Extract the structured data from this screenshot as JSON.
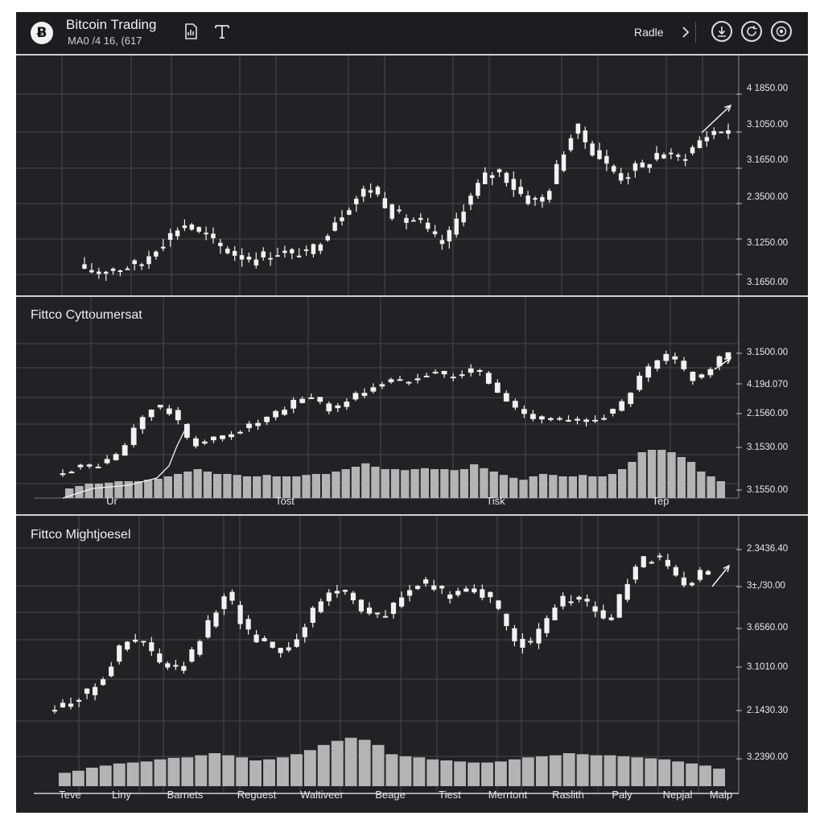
{
  "header": {
    "title": "Bitcoin Trading",
    "subtitle": "MA0 /4 16, (617",
    "logo_glyph": "Ƀ",
    "trade_label": "Radle",
    "icons": [
      "chart-doc-icon",
      "text-tool-icon",
      "chevron-right-icon",
      "download-icon",
      "refresh-icon",
      "target-icon"
    ]
  },
  "colors": {
    "frame_bg": "#222224",
    "grid": "#4a4a4c",
    "candle": "#f2f2f2",
    "volume": "#b4b4b4",
    "separator": "#d0d0d0"
  },
  "chart_data": [
    {
      "type": "candlestick",
      "title": "",
      "price_labels": [
        "4 1850.00",
        "3.1050.00",
        "3.1650.00",
        "2.3500.00",
        "3.1250.00",
        "3.1650.00"
      ],
      "x_labels": [],
      "close_levels": [
        0.84,
        0.82,
        0.8,
        0.86,
        0.84,
        0.87,
        0.89,
        0.9,
        0.93,
        1.06,
        1.18,
        1.26,
        1.34,
        1.45,
        1.5,
        1.44,
        1.35,
        1.33,
        1.22,
        1.16,
        1.12,
        1.07,
        1.04,
        1.02,
        0.99,
        1.04,
        1.07,
        1.1,
        1.05,
        1.07,
        1.09,
        1.04,
        1.15,
        1.3,
        1.42,
        1.57,
        1.67,
        1.79,
        1.88,
        1.97,
        2.03,
        1.91,
        1.82,
        1.67,
        1.6,
        1.55,
        1.56,
        1.49,
        1.36,
        1.27,
        1.22,
        1.34,
        1.56,
        1.77,
        1.89,
        2.05,
        2.18,
        2.24,
        2.27,
        2.17,
        2.04,
        1.94,
        1.86,
        1.82,
        1.88,
        2.05,
        2.3,
        2.58,
        2.77,
        2.86,
        2.7,
        2.58,
        2.47,
        2.34,
        2.26,
        2.19,
        2.24,
        2.3,
        2.34,
        2.43,
        2.52,
        2.49,
        2.46,
        2.47,
        2.52,
        2.6,
        2.71,
        2.79,
        2.85,
        2.87,
        2.84
      ],
      "volume": []
    },
    {
      "type": "candlestick",
      "title": "Fittco Cyttoumersat",
      "price_labels": [
        "3.1500.00",
        "4.19d.070",
        "2.1560.00",
        "3.1530.00",
        "3.1550.00"
      ],
      "x_labels": [
        "Ur",
        "Tost",
        "Tisk",
        "Tep"
      ],
      "close_levels": [
        0.6,
        0.62,
        0.63,
        0.64,
        0.66,
        0.69,
        0.74,
        0.84,
        1.0,
        1.12,
        1.2,
        1.21,
        1.17,
        1.05,
        0.92,
        0.86,
        0.88,
        0.9,
        0.93,
        0.97,
        1.0,
        1.03,
        1.06,
        1.1,
        1.14,
        1.19,
        1.26,
        1.31,
        1.31,
        1.26,
        1.2,
        1.22,
        1.28,
        1.33,
        1.37,
        1.42,
        1.45,
        1.47,
        1.46,
        1.49,
        1.53,
        1.56,
        1.56,
        1.52,
        1.52,
        1.54,
        1.57,
        1.55,
        1.45,
        1.35,
        1.27,
        1.2,
        1.16,
        1.13,
        1.11,
        1.1,
        1.08,
        1.07,
        1.07,
        1.09,
        1.12,
        1.14,
        1.17,
        1.25,
        1.37,
        1.49,
        1.58,
        1.65,
        1.7,
        1.66,
        1.57,
        1.5,
        1.53,
        1.6,
        1.68,
        1.74
      ],
      "volume": [
        0.2,
        0.25,
        0.3,
        0.3,
        0.32,
        0.35,
        0.35,
        0.35,
        0.38,
        0.4,
        0.45,
        0.5,
        0.55,
        0.6,
        0.55,
        0.5,
        0.5,
        0.48,
        0.45,
        0.45,
        0.48,
        0.45,
        0.45,
        0.45,
        0.48,
        0.5,
        0.5,
        0.55,
        0.6,
        0.65,
        0.72,
        0.65,
        0.6,
        0.6,
        0.58,
        0.6,
        0.62,
        0.6,
        0.6,
        0.58,
        0.6,
        0.7,
        0.62,
        0.55,
        0.48,
        0.42,
        0.38,
        0.45,
        0.5,
        0.48,
        0.45,
        0.45,
        0.48,
        0.45,
        0.45,
        0.5,
        0.6,
        0.75,
        0.95,
        1.0,
        1.0,
        0.95,
        0.85,
        0.75,
        0.55,
        0.45,
        0.35
      ]
    },
    {
      "type": "candlestick",
      "title": "Fittco Mightjoesel",
      "price_labels": [
        "2.3436.40",
        "3±,/30.00",
        "3.6560.00",
        "3.1010.00",
        "2.1430.30",
        "3.2390.00"
      ],
      "x_labels": [
        "Teve",
        "Liny",
        "Barnets",
        "Reguest",
        "Waltiveer",
        "Beage",
        "Tiest",
        "Merrtont",
        "Raslith",
        "Paly",
        "Nepjal",
        "Malp"
      ],
      "close_levels": [
        1.02,
        1.05,
        1.1,
        1.14,
        1.16,
        1.26,
        1.34,
        1.45,
        1.58,
        1.65,
        1.66,
        1.64,
        1.54,
        1.45,
        1.41,
        1.39,
        1.45,
        1.54,
        1.68,
        1.82,
        1.98,
        2.12,
        2.02,
        1.86,
        1.74,
        1.69,
        1.66,
        1.61,
        1.58,
        1.62,
        1.71,
        1.82,
        1.94,
        2.04,
        2.12,
        2.15,
        2.13,
        2.07,
        1.98,
        1.92,
        1.89,
        1.91,
        2.0,
        2.1,
        2.16,
        2.19,
        2.2,
        2.17,
        2.12,
        2.1,
        2.14,
        2.18,
        2.17,
        2.11,
        2.03,
        1.92,
        1.8,
        1.7,
        1.64,
        1.62,
        1.73,
        1.86,
        1.98,
        2.06,
        2.08,
        2.05,
        2.0,
        1.96,
        1.89,
        1.87,
        2.07,
        2.24,
        2.35,
        2.43,
        2.45,
        2.43,
        2.36,
        2.27,
        2.2,
        2.23,
        2.3,
        2.34
      ],
      "volume": [
        0.26,
        0.3,
        0.36,
        0.4,
        0.44,
        0.46,
        0.48,
        0.52,
        0.55,
        0.56,
        0.6,
        0.64,
        0.6,
        0.56,
        0.5,
        0.52,
        0.56,
        0.62,
        0.7,
        0.8,
        0.88,
        0.94,
        0.9,
        0.8,
        0.62,
        0.58,
        0.56,
        0.52,
        0.5,
        0.48,
        0.46,
        0.46,
        0.48,
        0.52,
        0.56,
        0.58,
        0.6,
        0.64,
        0.62,
        0.6,
        0.6,
        0.58,
        0.56,
        0.54,
        0.52,
        0.48,
        0.44,
        0.4,
        0.34
      ]
    }
  ]
}
